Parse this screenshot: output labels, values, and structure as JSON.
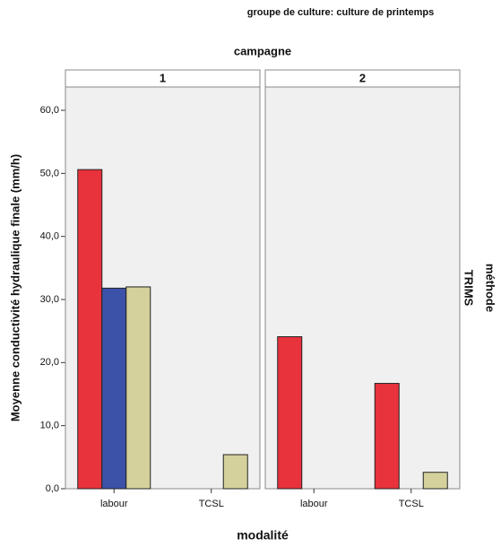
{
  "chart_data": {
    "type": "bar",
    "title": "groupe de culture: culture de printemps",
    "facet_title": "campagne",
    "x_label": "modalité",
    "y_label": "Moyenne conductivité hydraulique finale (mm/h)",
    "row_facet_title": "méthode",
    "row_label": "TRIMS",
    "categories": [
      "labour",
      "TCSL"
    ],
    "ylim": [
      0,
      63.7
    ],
    "yticks": [
      {
        "value": 0,
        "label": "0,0"
      },
      {
        "value": 10,
        "label": "10,0"
      },
      {
        "value": 20,
        "label": "20,0"
      },
      {
        "value": 30,
        "label": "30,0"
      },
      {
        "value": 40,
        "label": "40,0"
      },
      {
        "value": 50,
        "label": "50,0"
      },
      {
        "value": 60,
        "label": "60,0"
      }
    ],
    "panels": [
      {
        "title": "1",
        "series": [
          {
            "color": "#e8323c",
            "values": [
              50.6,
              null
            ]
          },
          {
            "color": "#3b52a8",
            "values": [
              31.8,
              null
            ]
          },
          {
            "color": "#d5d19c",
            "values": [
              32.0,
              5.4
            ]
          }
        ]
      },
      {
        "title": "2",
        "series": [
          {
            "color": "#e8323c",
            "values": [
              24.1,
              16.7
            ]
          },
          {
            "color": "#3b52a8",
            "values": [
              null,
              null
            ]
          },
          {
            "color": "#d5d19c",
            "values": [
              null,
              2.6
            ]
          }
        ]
      }
    ]
  }
}
